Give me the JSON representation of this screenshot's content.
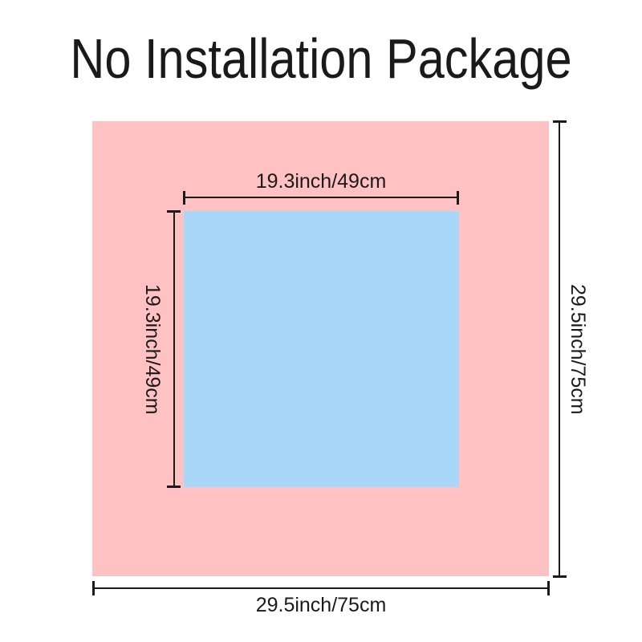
{
  "title": "No Installation Package",
  "colors": {
    "outer_square": "#ffc1c1",
    "inner_square": "#a8d7f7",
    "line": "#1a1a1a",
    "text": "#1a1a1a",
    "background": "#ffffff"
  },
  "dimensions": {
    "inner_width": "19.3inch/49cm",
    "inner_height": "19.3inch/49cm",
    "outer_width": "29.5inch/75cm",
    "outer_height": "29.5inch/75cm"
  }
}
